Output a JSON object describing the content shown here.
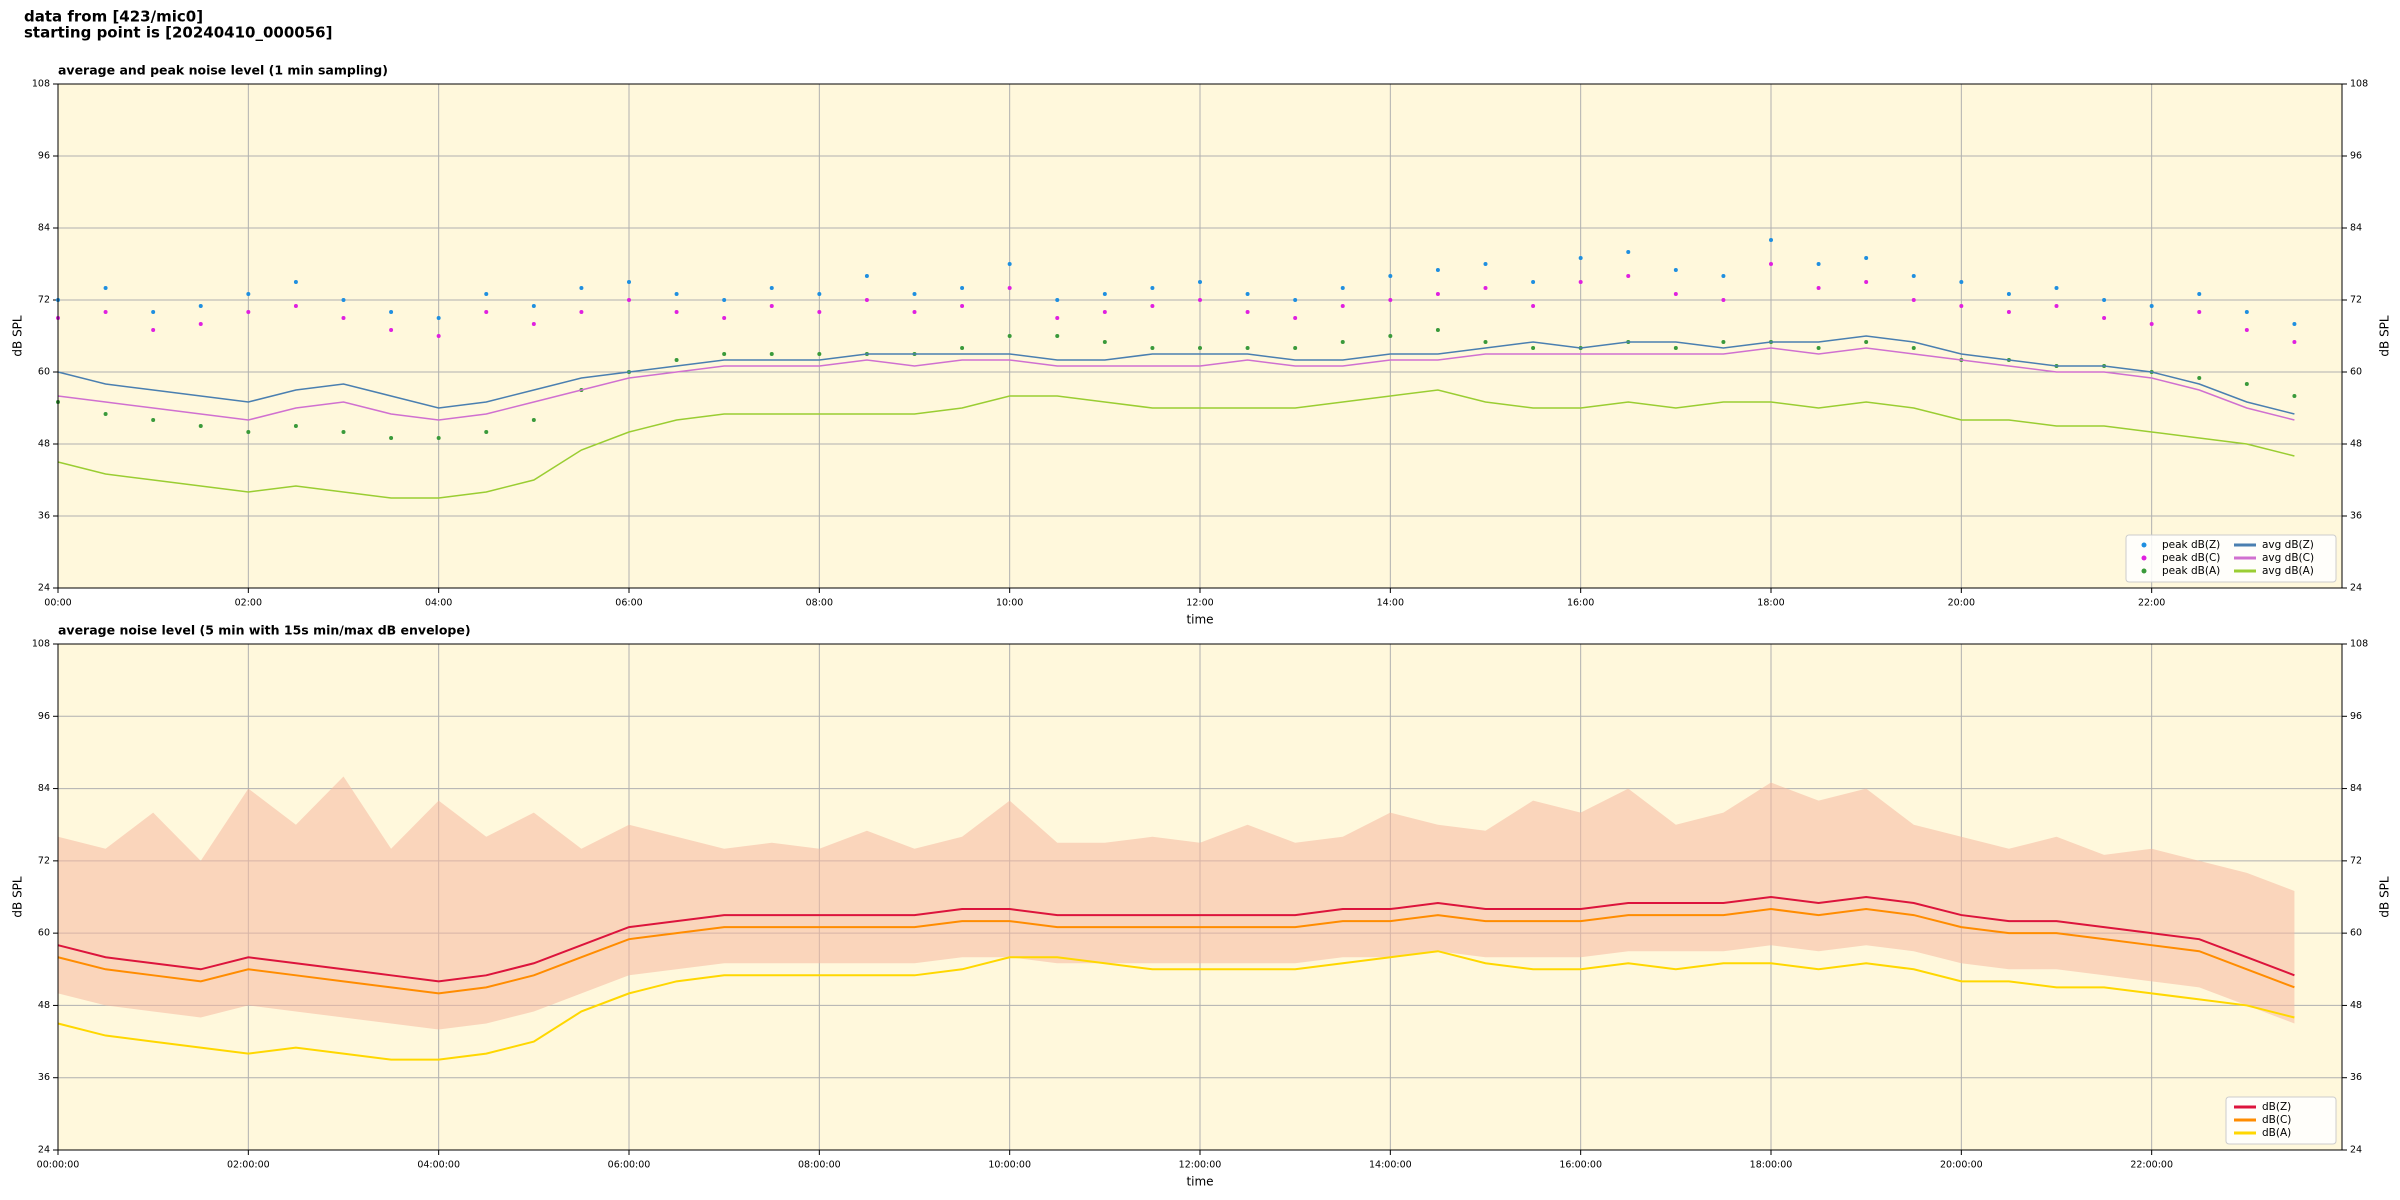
{
  "header": {
    "lines": [
      "data from [423/mic0]",
      "starting point is [20240410_000056]"
    ]
  },
  "chart_data": [
    {
      "type": "line",
      "title": "average and peak noise level (1 min sampling)",
      "xlabel": "time",
      "ylabel": "dB SPL",
      "xlim": [
        0,
        24
      ],
      "ylim": [
        24,
        108
      ],
      "yticks": [
        24,
        36,
        48,
        60,
        72,
        84,
        96,
        108
      ],
      "xticks": [
        {
          "value": 0,
          "label": "00:00"
        },
        {
          "value": 2,
          "label": "02:00"
        },
        {
          "value": 4,
          "label": "04:00"
        },
        {
          "value": 6,
          "label": "06:00"
        },
        {
          "value": 8,
          "label": "08:00"
        },
        {
          "value": 10,
          "label": "10:00"
        },
        {
          "value": 12,
          "label": "12:00"
        },
        {
          "value": 14,
          "label": "14:00"
        },
        {
          "value": 16,
          "label": "16:00"
        },
        {
          "value": 18,
          "label": "18:00"
        },
        {
          "value": 20,
          "label": "20:00"
        },
        {
          "value": 22,
          "label": "22:00"
        }
      ],
      "grid": true,
      "background": "#fff8dc",
      "legend": "lower right",
      "legend_columns": 2,
      "x": [
        0,
        0.5,
        1,
        1.5,
        2,
        2.5,
        3,
        3.5,
        4,
        4.5,
        5,
        5.5,
        6,
        6.5,
        7,
        7.5,
        8,
        8.5,
        9,
        9.5,
        10,
        10.5,
        11,
        11.5,
        12,
        12.5,
        13,
        13.5,
        14,
        14.5,
        15,
        15.5,
        16,
        16.5,
        17,
        17.5,
        18,
        18.5,
        19,
        19.5,
        20,
        20.5,
        21,
        21.5,
        22,
        22.5,
        23,
        23.5
      ],
      "series": [
        {
          "name": "peak dB(Z)",
          "kind": "scatter",
          "color": "#1f8fe0",
          "values": [
            72,
            74,
            70,
            71,
            73,
            75,
            72,
            70,
            69,
            73,
            71,
            74,
            75,
            73,
            72,
            74,
            73,
            76,
            73,
            74,
            78,
            72,
            73,
            74,
            75,
            73,
            72,
            74,
            76,
            77,
            78,
            75,
            79,
            80,
            77,
            76,
            82,
            78,
            79,
            76,
            75,
            73,
            74,
            72,
            71,
            73,
            70,
            68
          ]
        },
        {
          "name": "peak dB(C)",
          "kind": "scatter",
          "color": "#e020e0",
          "values": [
            69,
            70,
            67,
            68,
            70,
            71,
            69,
            67,
            66,
            70,
            68,
            70,
            72,
            70,
            69,
            71,
            70,
            72,
            70,
            71,
            74,
            69,
            70,
            71,
            72,
            70,
            69,
            71,
            72,
            73,
            74,
            71,
            75,
            76,
            73,
            72,
            78,
            74,
            75,
            72,
            71,
            70,
            71,
            69,
            68,
            70,
            67,
            65
          ]
        },
        {
          "name": "peak dB(A)",
          "kind": "scatter",
          "color": "#3a9a3a",
          "values": [
            55,
            53,
            52,
            51,
            50,
            51,
            50,
            49,
            49,
            50,
            52,
            57,
            60,
            62,
            63,
            63,
            63,
            63,
            63,
            64,
            66,
            66,
            65,
            64,
            64,
            64,
            64,
            65,
            66,
            67,
            65,
            64,
            64,
            65,
            64,
            65,
            65,
            64,
            65,
            64,
            62,
            62,
            61,
            61,
            60,
            59,
            58,
            56
          ]
        },
        {
          "name": "avg dB(Z)",
          "kind": "line",
          "color": "#4a7fb0",
          "values": [
            60,
            58,
            57,
            56,
            55,
            57,
            58,
            56,
            54,
            55,
            57,
            59,
            60,
            61,
            62,
            62,
            62,
            63,
            63,
            63,
            63,
            62,
            62,
            63,
            63,
            63,
            62,
            62,
            63,
            63,
            64,
            65,
            64,
            65,
            65,
            64,
            65,
            65,
            66,
            65,
            63,
            62,
            61,
            61,
            60,
            58,
            55,
            53
          ]
        },
        {
          "name": "avg dB(C)",
          "kind": "line",
          "color": "#d070d0",
          "values": [
            56,
            55,
            54,
            53,
            52,
            54,
            55,
            53,
            52,
            53,
            55,
            57,
            59,
            60,
            61,
            61,
            61,
            62,
            61,
            62,
            62,
            61,
            61,
            61,
            61,
            62,
            61,
            61,
            62,
            62,
            63,
            63,
            63,
            63,
            63,
            63,
            64,
            63,
            64,
            63,
            62,
            61,
            60,
            60,
            59,
            57,
            54,
            52
          ]
        },
        {
          "name": "avg dB(A)",
          "kind": "line",
          "color": "#9acd32",
          "values": [
            45,
            43,
            42,
            41,
            40,
            41,
            40,
            39,
            39,
            40,
            42,
            47,
            50,
            52,
            53,
            53,
            53,
            53,
            53,
            54,
            56,
            56,
            55,
            54,
            54,
            54,
            54,
            55,
            56,
            57,
            55,
            54,
            54,
            55,
            54,
            55,
            55,
            54,
            55,
            54,
            52,
            52,
            51,
            51,
            50,
            49,
            48,
            46
          ]
        }
      ]
    },
    {
      "type": "line",
      "title": "average noise level (5 min with 15s min/max dB envelope)",
      "xlabel": "time",
      "ylabel": "dB SPL",
      "xlim": [
        0,
        24
      ],
      "ylim": [
        24,
        108
      ],
      "yticks": [
        24,
        36,
        48,
        60,
        72,
        84,
        96,
        108
      ],
      "xticks": [
        {
          "value": 0,
          "label": "00:00:00"
        },
        {
          "value": 2,
          "label": "02:00:00"
        },
        {
          "value": 4,
          "label": "04:00:00"
        },
        {
          "value": 6,
          "label": "06:00:00"
        },
        {
          "value": 8,
          "label": "08:00:00"
        },
        {
          "value": 10,
          "label": "10:00:00"
        },
        {
          "value": 12,
          "label": "12:00:00"
        },
        {
          "value": 14,
          "label": "14:00:00"
        },
        {
          "value": 16,
          "label": "16:00:00"
        },
        {
          "value": 18,
          "label": "18:00:00"
        },
        {
          "value": 20,
          "label": "20:00:00"
        },
        {
          "value": 22,
          "label": "22:00:00"
        }
      ],
      "grid": true,
      "background": "#fff8dc",
      "legend": "lower right",
      "legend_columns": 1,
      "x": [
        0,
        0.5,
        1,
        1.5,
        2,
        2.5,
        3,
        3.5,
        4,
        4.5,
        5,
        5.5,
        6,
        6.5,
        7,
        7.5,
        8,
        8.5,
        9,
        9.5,
        10,
        10.5,
        11,
        11.5,
        12,
        12.5,
        13,
        13.5,
        14,
        14.5,
        15,
        15.5,
        16,
        16.5,
        17,
        17.5,
        18,
        18.5,
        19,
        19.5,
        20,
        20.5,
        21,
        21.5,
        22,
        22.5,
        23,
        23.5
      ],
      "envelope": {
        "color": "#f5b8a0",
        "lower": [
          50,
          48,
          47,
          46,
          48,
          47,
          46,
          45,
          44,
          45,
          47,
          50,
          53,
          54,
          55,
          55,
          55,
          55,
          55,
          56,
          56,
          55,
          55,
          55,
          55,
          55,
          55,
          56,
          56,
          57,
          56,
          56,
          56,
          57,
          57,
          57,
          58,
          57,
          58,
          57,
          55,
          54,
          54,
          53,
          52,
          51,
          48,
          45
        ],
        "upper": [
          76,
          74,
          80,
          72,
          84,
          78,
          86,
          74,
          82,
          76,
          80,
          74,
          78,
          76,
          74,
          75,
          74,
          77,
          74,
          76,
          82,
          75,
          75,
          76,
          75,
          78,
          75,
          76,
          80,
          78,
          77,
          82,
          80,
          84,
          78,
          80,
          85,
          82,
          84,
          78,
          76,
          74,
          76,
          73,
          74,
          72,
          70,
          67
        ]
      },
      "series": [
        {
          "name": "dB(Z)",
          "kind": "line",
          "color": "#dc143c",
          "values": [
            58,
            56,
            55,
            54,
            56,
            55,
            54,
            53,
            52,
            53,
            55,
            58,
            61,
            62,
            63,
            63,
            63,
            63,
            63,
            64,
            64,
            63,
            63,
            63,
            63,
            63,
            63,
            64,
            64,
            65,
            64,
            64,
            64,
            65,
            65,
            65,
            66,
            65,
            66,
            65,
            63,
            62,
            62,
            61,
            60,
            59,
            56,
            53
          ]
        },
        {
          "name": "dB(C)",
          "kind": "line",
          "color": "#ff8c00",
          "values": [
            56,
            54,
            53,
            52,
            54,
            53,
            52,
            51,
            50,
            51,
            53,
            56,
            59,
            60,
            61,
            61,
            61,
            61,
            61,
            62,
            62,
            61,
            61,
            61,
            61,
            61,
            61,
            62,
            62,
            63,
            62,
            62,
            62,
            63,
            63,
            63,
            64,
            63,
            64,
            63,
            61,
            60,
            60,
            59,
            58,
            57,
            54,
            51
          ]
        },
        {
          "name": "dB(A)",
          "kind": "line",
          "color": "#ffd700",
          "values": [
            45,
            43,
            42,
            41,
            40,
            41,
            40,
            39,
            39,
            40,
            42,
            47,
            50,
            52,
            53,
            53,
            53,
            53,
            53,
            54,
            56,
            56,
            55,
            54,
            54,
            54,
            54,
            55,
            56,
            57,
            55,
            54,
            54,
            55,
            54,
            55,
            55,
            54,
            55,
            54,
            52,
            52,
            51,
            51,
            50,
            49,
            48,
            46
          ]
        }
      ]
    }
  ]
}
